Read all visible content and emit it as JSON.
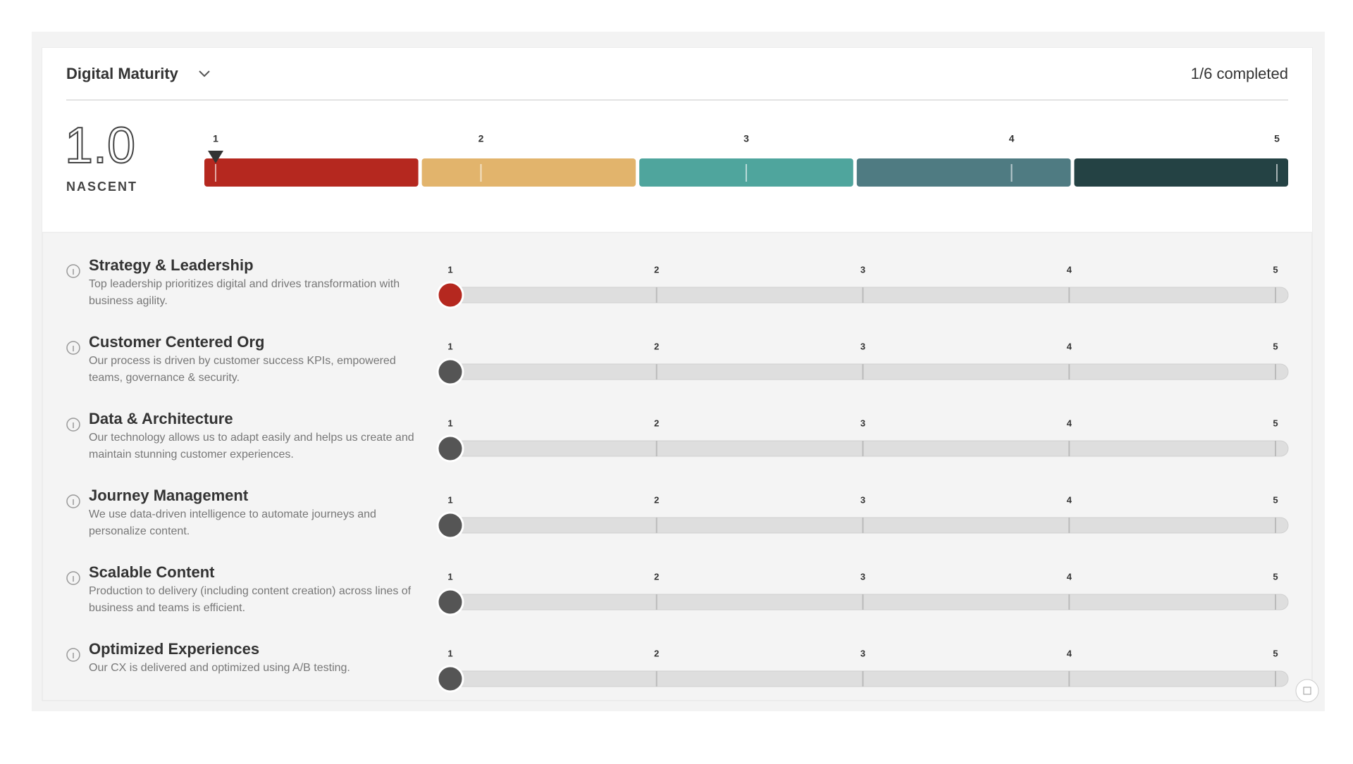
{
  "header": {
    "title": "Digital Maturity",
    "progress": "1/6 completed"
  },
  "summary": {
    "score": "1.0",
    "level": "NASCENT",
    "value": 1,
    "colors": [
      "#b5281f",
      "#e2b46c",
      "#4fa59d",
      "#4f7b82",
      "#244244"
    ]
  },
  "scale": [
    1,
    2,
    3,
    4,
    5
  ],
  "rows": [
    {
      "title": "Strategy & Leadership",
      "description": "Top leadership prioritizes digital and drives transformation with business agility.",
      "value": 1,
      "answered": true
    },
    {
      "title": "Customer Centered Org",
      "description": "Our process is driven by customer success KPIs, empowered teams, governance & security.",
      "value": 1,
      "answered": false
    },
    {
      "title": "Data & Architecture",
      "description": "Our technology allows us to adapt easily and helps us create and maintain stunning customer experiences.",
      "value": 1,
      "answered": false
    },
    {
      "title": "Journey Management",
      "description": "We use data-driven intelligence to automate journeys and personalize content.",
      "value": 1,
      "answered": false
    },
    {
      "title": "Scalable Content",
      "description": "Production to delivery (including content creation) across lines of business and teams is efficient.",
      "value": 1,
      "answered": false
    },
    {
      "title": "Optimized Experiences",
      "description": "Our CX is delivered and optimized using A/B testing.",
      "value": 1,
      "answered": false
    }
  ]
}
